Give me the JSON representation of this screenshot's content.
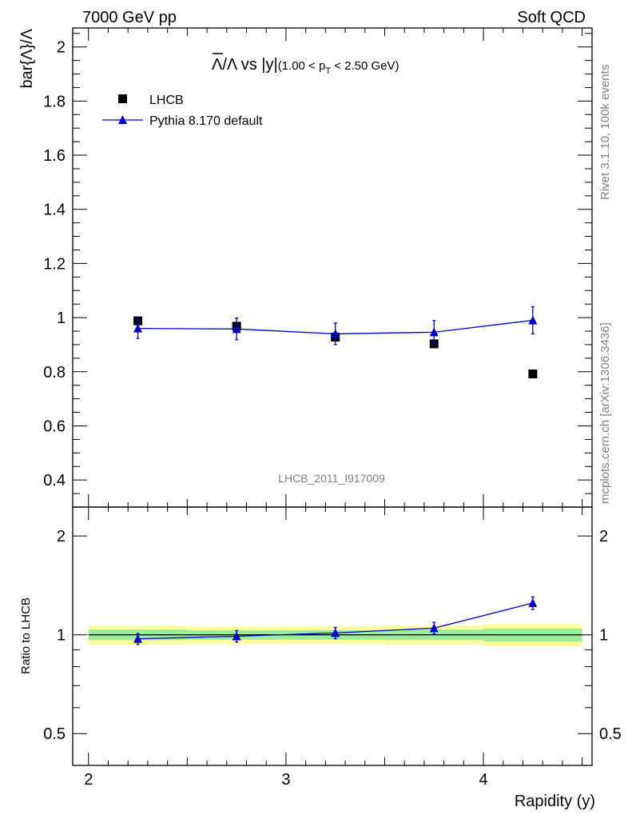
{
  "header": {
    "left": "7000 GeV pp",
    "right": "Soft QCD"
  },
  "side_text": {
    "rivet": "Rivet 3.1.10,  100k events",
    "mcplots": "mcplots.cern.ch [arXiv:1306.3436]"
  },
  "watermark": "LHCB_2011_I917009",
  "chart_data": [
    {
      "type": "scatter",
      "panel": "main",
      "title": {
        "lambda_bar": "Λ",
        "over_lambda": "/Λ vs |y|",
        "cut_open": "(1.00 < p",
        "cut_sub": "T",
        "cut_close": " < 2.50 GeV)"
      },
      "ylabel": "bar{Λ}/Λ",
      "xlabel": "",
      "xlim": [
        1.92,
        4.55
      ],
      "ylim": [
        0.3,
        2.07
      ],
      "yticks": [
        0.4,
        0.6,
        0.8,
        1,
        1.2,
        1.4,
        1.6,
        1.8,
        2
      ],
      "ytick_labels": [
        "0.4",
        "0.6",
        "0.8",
        "1",
        "1.2",
        "1.4",
        "1.6",
        "1.8",
        "2"
      ],
      "legend": {
        "placement": "top-left"
      },
      "series": [
        {
          "name": "LHCB",
          "marker": "square",
          "color": "#000000",
          "points": [
            {
              "x": 2.25,
              "y": 0.988,
              "err": 0.01
            },
            {
              "x": 2.75,
              "y": 0.968,
              "err": 0.01
            },
            {
              "x": 3.25,
              "y": 0.928,
              "err": 0.01
            },
            {
              "x": 3.75,
              "y": 0.903,
              "err": 0.01
            },
            {
              "x": 4.25,
              "y": 0.792,
              "err": 0.01
            }
          ]
        },
        {
          "name": "Pythia 8.170 default",
          "marker": "triangle",
          "color": "#0000cc",
          "points": [
            {
              "x": 2.25,
              "y": 0.96,
              "err": 0.037
            },
            {
              "x": 2.75,
              "y": 0.958,
              "err": 0.04
            },
            {
              "x": 3.25,
              "y": 0.94,
              "err": 0.04
            },
            {
              "x": 3.75,
              "y": 0.946,
              "err": 0.043
            },
            {
              "x": 4.25,
              "y": 0.99,
              "err": 0.05
            }
          ]
        }
      ]
    },
    {
      "type": "scatter",
      "panel": "ratio",
      "ylabel": "Ratio to LHCB",
      "xlabel": "Rapidity (y)",
      "xlim": [
        1.92,
        4.55
      ],
      "ylim": [
        0.4,
        2.45
      ],
      "ylog": true,
      "yticks": [
        0.5,
        1,
        2
      ],
      "ytick_labels": [
        "0.5",
        "1",
        "2"
      ],
      "xticks": [
        2,
        3,
        4
      ],
      "xtick_labels": [
        "2",
        "3",
        "4"
      ],
      "bands": [
        {
          "x0": 2.0,
          "x1": 2.5,
          "inner": [
            0.963,
            1.037
          ],
          "outer": [
            0.935,
            1.065
          ]
        },
        {
          "x0": 2.5,
          "x1": 3.0,
          "inner": [
            0.966,
            1.033
          ],
          "outer": [
            0.94,
            1.06
          ]
        },
        {
          "x0": 3.0,
          "x1": 3.5,
          "inner": [
            0.966,
            1.033
          ],
          "outer": [
            0.94,
            1.06
          ]
        },
        {
          "x0": 3.5,
          "x1": 4.0,
          "inner": [
            0.963,
            1.037
          ],
          "outer": [
            0.935,
            1.065
          ]
        },
        {
          "x0": 4.0,
          "x1": 4.5,
          "inner": [
            0.955,
            1.045
          ],
          "outer": [
            0.922,
            1.078
          ]
        }
      ],
      "band_colors": {
        "inner": "#99ee99",
        "outer": "#ffff99"
      },
      "series": [
        {
          "name": "Pythia 8.170 default",
          "marker": "triangle",
          "color": "#0000cc",
          "points": [
            {
              "x": 2.25,
              "y": 0.972,
              "err": 0.037
            },
            {
              "x": 2.75,
              "y": 0.99,
              "err": 0.04
            },
            {
              "x": 3.25,
              "y": 1.013,
              "err": 0.04
            },
            {
              "x": 3.75,
              "y": 1.048,
              "err": 0.043
            },
            {
              "x": 4.25,
              "y": 1.25,
              "err": 0.055
            }
          ]
        }
      ]
    }
  ]
}
